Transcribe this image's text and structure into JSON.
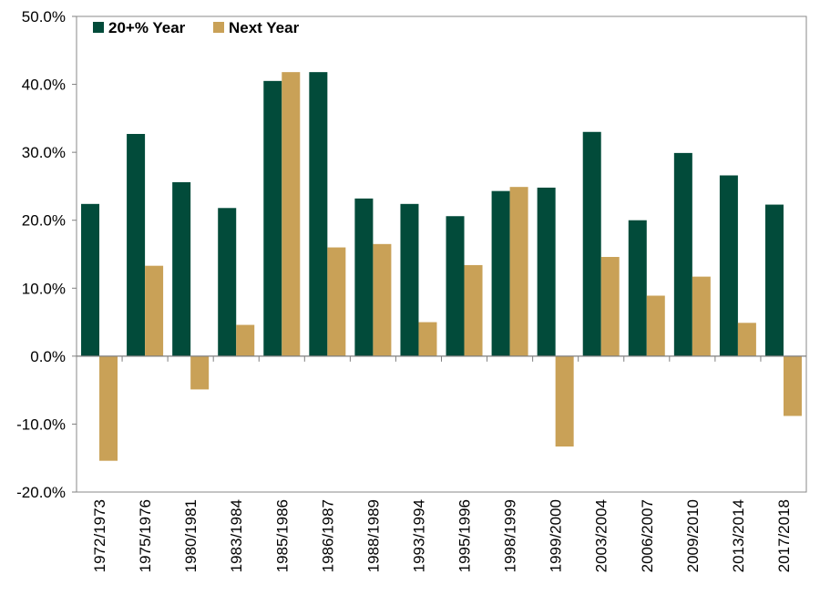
{
  "chart_data": {
    "type": "bar",
    "categories": [
      "1972/1973",
      "1975/1976",
      "1980/1981",
      "1983/1984",
      "1985/1986",
      "1986/1987",
      "1988/1989",
      "1993/1994",
      "1995/1996",
      "1998/1999",
      "1999/2000",
      "2003/2004",
      "2006/2007",
      "2009/2010",
      "2013/2014",
      "2017/2018"
    ],
    "series": [
      {
        "name": "20+% Year",
        "color": "#024B3A",
        "values": [
          22.4,
          32.7,
          25.6,
          21.8,
          40.5,
          41.8,
          23.2,
          22.4,
          20.6,
          24.3,
          24.8,
          33.0,
          20.0,
          29.9,
          26.6,
          22.3
        ]
      },
      {
        "name": "Next Year",
        "color": "#C9A157",
        "values": [
          -15.4,
          13.3,
          -4.9,
          4.6,
          41.8,
          16.0,
          16.5,
          5.0,
          13.4,
          24.9,
          -13.3,
          14.6,
          8.9,
          11.7,
          4.9,
          -8.8
        ]
      }
    ],
    "ylim": [
      -20,
      50
    ],
    "yticks": [
      "-20.0%",
      "-10.0%",
      "0.0%",
      "10.0%",
      "20.0%",
      "30.0%",
      "40.0%",
      "50.0%"
    ],
    "legend": "top-left",
    "grid": false,
    "title": "",
    "xlabel": "",
    "ylabel": ""
  }
}
